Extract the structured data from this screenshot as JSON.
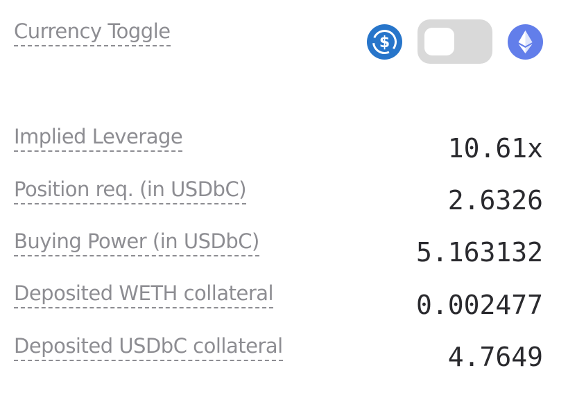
{
  "currency_toggle": {
    "label": "Currency Toggle",
    "left_icon": "usdc-coin-icon",
    "right_icon": "eth-coin-icon",
    "colors": {
      "usdc": "#2775ca",
      "eth": "#627eea",
      "track": "#d9d9d9",
      "knob": "#ffffff"
    }
  },
  "stats": [
    {
      "label": "Implied Leverage",
      "value": "10.61x"
    },
    {
      "label": "Position req. (in USDbC)",
      "value": "2.6326"
    },
    {
      "label": "Buying Power (in USDbC)",
      "value": "5.163132"
    },
    {
      "label": "Deposited WETH collateral",
      "value": "0.002477"
    },
    {
      "label": "Deposited USDbC collateral",
      "value": "4.7649"
    }
  ]
}
